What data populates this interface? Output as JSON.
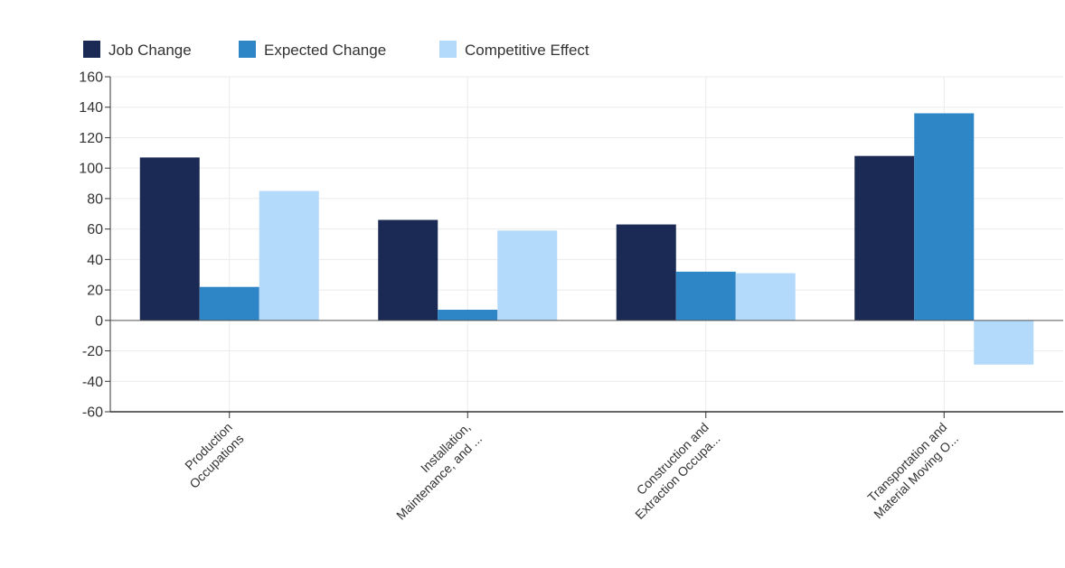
{
  "chart_data": {
    "type": "bar",
    "title": "",
    "xlabel": "",
    "ylabel": "",
    "categories": [
      [
        "Production",
        "Occupations"
      ],
      [
        "Installation,",
        "Maintenance, and ..."
      ],
      [
        "Construction and",
        "Extraction Occupa..."
      ],
      [
        "Transportation and",
        "Material Moving O..."
      ]
    ],
    "series": [
      {
        "name": "Job Change",
        "color": "#1b2a55",
        "values": [
          107,
          66,
          63,
          108
        ]
      },
      {
        "name": "Expected Change",
        "color": "#2e86c6",
        "values": [
          22,
          7,
          32,
          136
        ]
      },
      {
        "name": "Competitive Effect",
        "color": "#b3d9fb",
        "values": [
          85,
          59,
          31,
          -29
        ]
      }
    ],
    "ylim": [
      -60,
      160
    ],
    "yticks": [
      160,
      140,
      120,
      100,
      80,
      60,
      40,
      20,
      0,
      -20,
      -40,
      -60
    ],
    "grid": true,
    "legend_position": "top-left"
  }
}
